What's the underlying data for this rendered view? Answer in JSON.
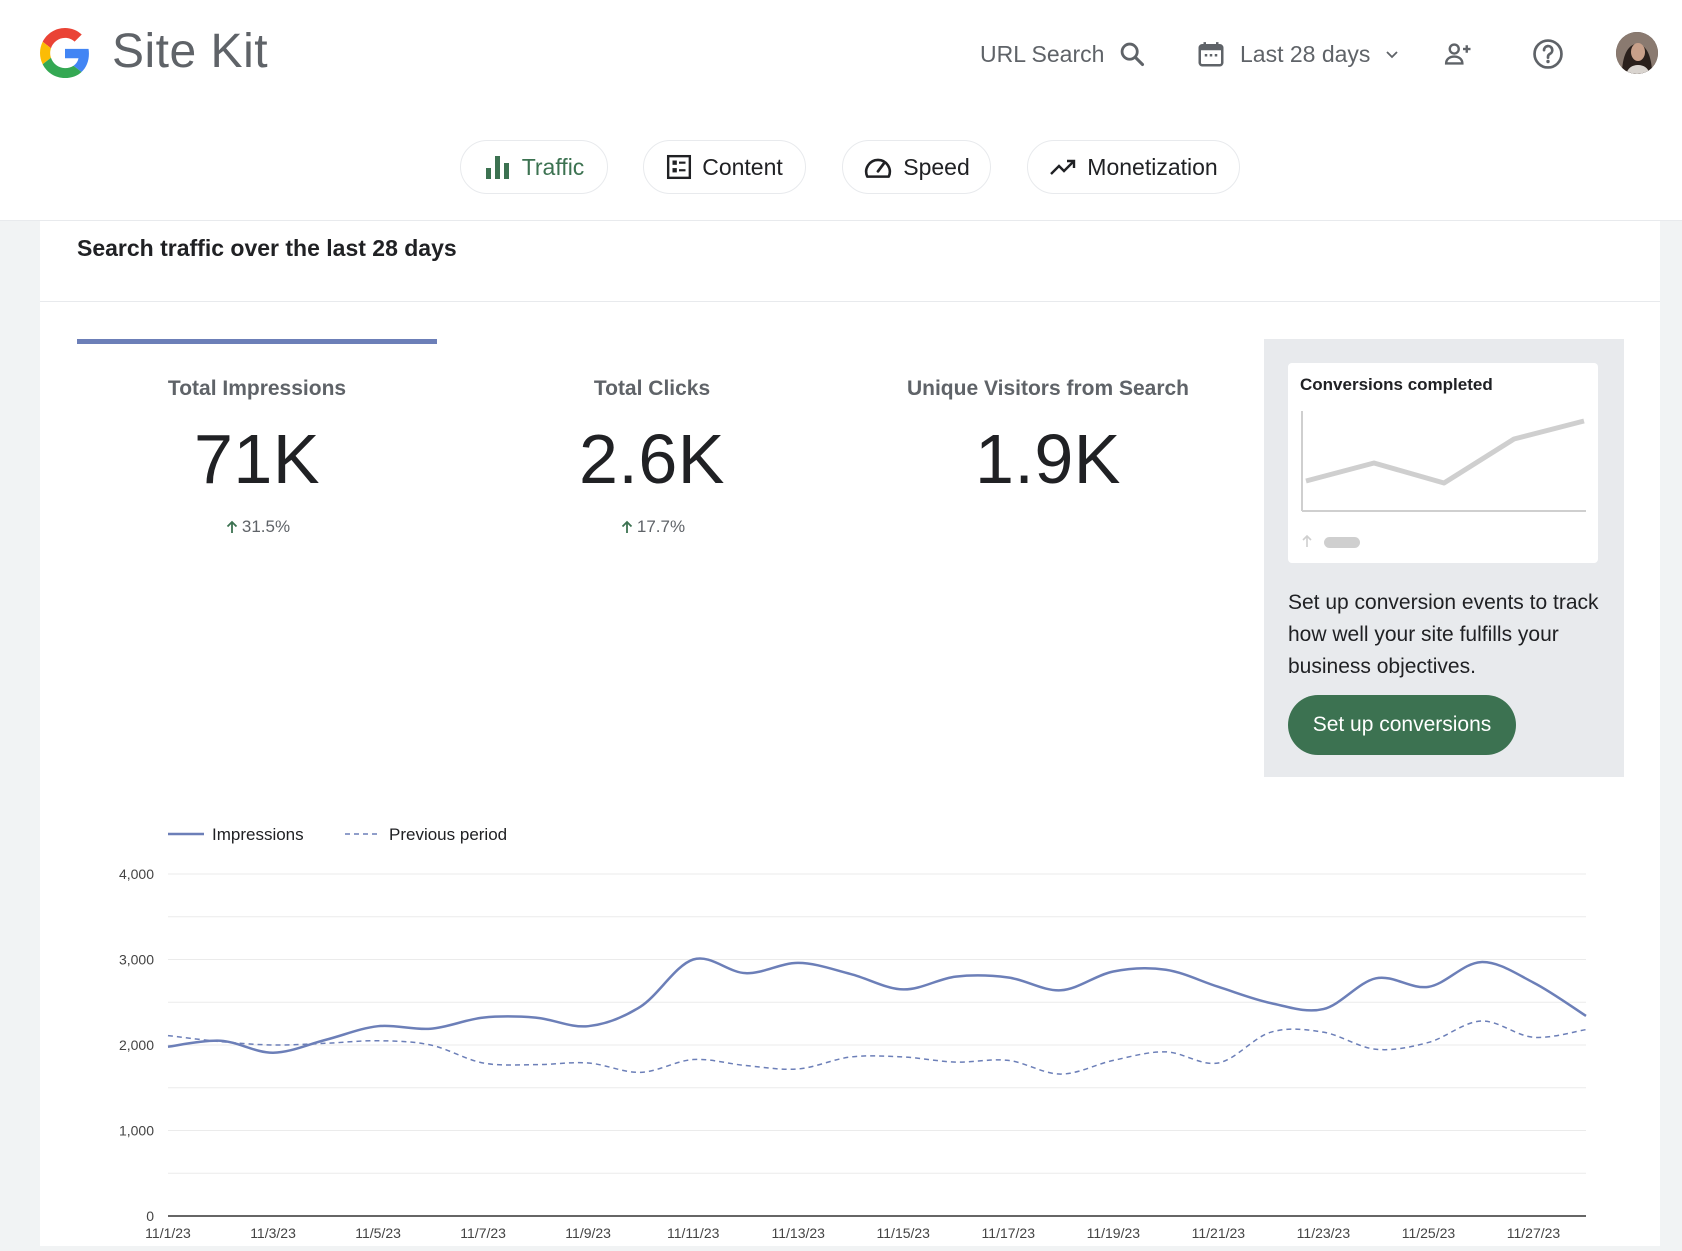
{
  "header": {
    "brand": "Site Kit",
    "url_search_label": "URL Search",
    "date_range_label": "Last 28 days"
  },
  "tabs": [
    {
      "label": "Traffic",
      "active": true
    },
    {
      "label": "Content",
      "active": false
    },
    {
      "label": "Speed",
      "active": false
    },
    {
      "label": "Monetization",
      "active": false
    }
  ],
  "card": {
    "title": "Search traffic over the last 28 days",
    "metrics": [
      {
        "label": "Total Impressions",
        "value": "71K",
        "change": "31.5%",
        "selected": true
      },
      {
        "label": "Total Clicks",
        "value": "2.6K",
        "change": "17.7%",
        "selected": false
      },
      {
        "label": "Unique Visitors from Search",
        "value": "1.9K",
        "change": "",
        "selected": false
      }
    ],
    "conversions": {
      "title": "Conversions completed",
      "description": "Set up conversion events to track how well your site fulfills your business objectives.",
      "button_label": "Set up conversions"
    }
  },
  "colors": {
    "accent_green": "#3c7251",
    "series_blue": "#6c7fb8",
    "text": "#202124",
    "muted": "#5f6368"
  },
  "chart_data": {
    "type": "line",
    "x": [
      "11/1/23",
      "11/2/23",
      "11/3/23",
      "11/4/23",
      "11/5/23",
      "11/6/23",
      "11/7/23",
      "11/8/23",
      "11/9/23",
      "11/10/23",
      "11/11/23",
      "11/12/23",
      "11/13/23",
      "11/14/23",
      "11/15/23",
      "11/16/23",
      "11/17/23",
      "11/18/23",
      "11/19/23",
      "11/20/23",
      "11/21/23",
      "11/22/23",
      "11/23/23",
      "11/24/23",
      "11/25/23",
      "11/26/23",
      "11/27/23",
      "11/28/23"
    ],
    "x_tick_labels": [
      "11/1/23",
      "11/3/23",
      "11/5/23",
      "11/7/23",
      "11/9/23",
      "11/11/23",
      "11/13/23",
      "11/15/23",
      "11/17/23",
      "11/19/23",
      "11/21/23",
      "11/23/23",
      "11/25/23",
      "11/27/23"
    ],
    "series": [
      {
        "name": "Impressions",
        "style": "solid",
        "values": [
          1980,
          2050,
          1910,
          2060,
          2220,
          2190,
          2320,
          2320,
          2220,
          2450,
          3000,
          2840,
          2960,
          2830,
          2650,
          2800,
          2790,
          2640,
          2860,
          2880,
          2680,
          2490,
          2420,
          2780,
          2680,
          2970,
          2730,
          2340
        ]
      },
      {
        "name": "Previous period",
        "style": "dashed",
        "values": [
          2110,
          2040,
          2000,
          2020,
          2050,
          2000,
          1790,
          1770,
          1790,
          1680,
          1830,
          1760,
          1720,
          1860,
          1860,
          1800,
          1820,
          1660,
          1820,
          1920,
          1790,
          2150,
          2150,
          1950,
          2030,
          2280,
          2090,
          2180
        ]
      }
    ],
    "y_ticks": [
      0,
      1000,
      2000,
      3000,
      4000
    ],
    "y_tick_labels": [
      "0",
      "1,000",
      "2,000",
      "3,000",
      "4,000"
    ],
    "ylim": [
      0,
      4000
    ],
    "grid": true,
    "legend": "top-left"
  }
}
